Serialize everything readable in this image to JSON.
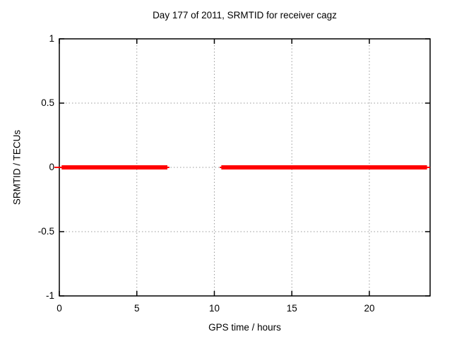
{
  "chart_data": {
    "type": "line",
    "title": "Day 177 of 2011, SRMTID for receiver cagz",
    "xlabel": "GPS time / hours",
    "ylabel": "SRMTID / TECUs",
    "xlim": [
      0,
      23.92
    ],
    "ylim": [
      -1,
      1
    ],
    "x_ticks": [
      {
        "label": "0",
        "value": 0
      },
      {
        "label": "5",
        "value": 5
      },
      {
        "label": "10",
        "value": 10
      },
      {
        "label": "15",
        "value": 15
      },
      {
        "label": "20",
        "value": 20
      }
    ],
    "y_ticks": [
      {
        "label": "1",
        "value": 1
      },
      {
        "label": "0.5",
        "value": 0.5
      },
      {
        "label": "0",
        "value": 0
      },
      {
        "label": "-0.5",
        "value": -0.5
      },
      {
        "label": "-1",
        "value": -1
      }
    ],
    "grid": true,
    "legend": "none",
    "series": [
      {
        "name": "SRMTID",
        "color": "#ff0000",
        "y_value": 0,
        "segments_hours": [
          [
            0.15,
            6.97
          ],
          [
            10.45,
            23.72
          ]
        ],
        "thin_extensions_hours": [
          [
            -0.32,
            7.1
          ],
          [
            10.35,
            23.92
          ]
        ],
        "gap_hours": [
          7.0,
          10.45
        ]
      }
    ],
    "colors": {
      "series": "#ff0000",
      "grid": "#9a9a9a",
      "axis": "#000000",
      "background": "#ffffff",
      "text": "#000000"
    }
  }
}
